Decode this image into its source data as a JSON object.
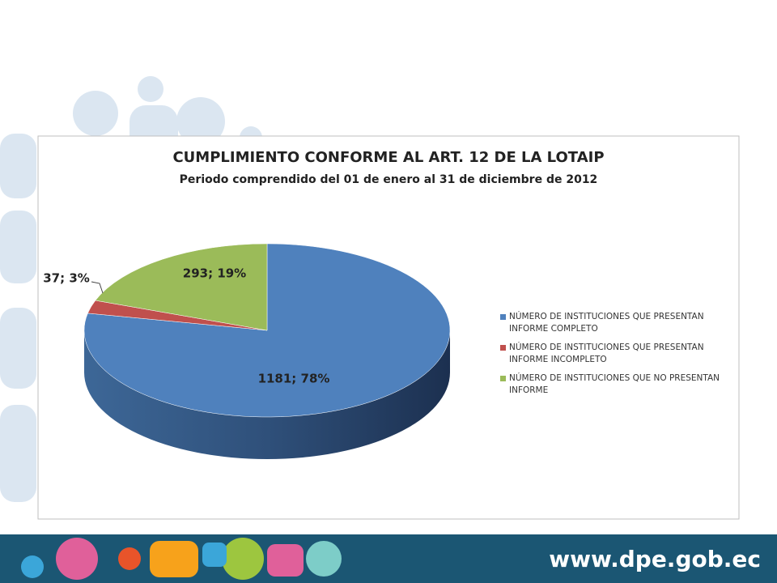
{
  "chart_data": {
    "type": "pie",
    "title": "CUMPLIMIENTO CONFORME AL ART. 12 DE LA LOTAIP",
    "subtitle": "Periodo comprendido del 01 de enero al 31 de diciembre de 2012",
    "categories": [
      "NÚMERO DE INSTITUCIONES QUE PRESENTAN INFORME COMPLETO",
      "NÚMERO DE INSTITUCIONES QUE PRESENTAN INFORME INCOMPLETO",
      "NÚMERO DE INSTITUCIONES QUE NO PRESENTAN INFORME"
    ],
    "values": [
      1181,
      37,
      293
    ],
    "value_labels": [
      "1181; 78%",
      "37; 3%",
      "293; 19%"
    ],
    "colors": [
      "#4f81bd",
      "#c0504d",
      "#9bbb59"
    ],
    "legend": "right"
  },
  "footer": "www.dpe.gob.ec"
}
